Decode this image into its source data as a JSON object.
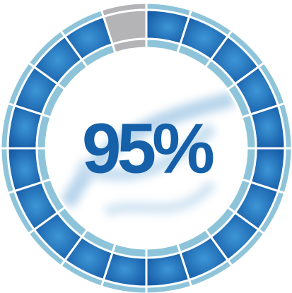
{
  "chart_data": {
    "type": "ring",
    "values": [
      95
    ],
    "value_labels": [
      "95%"
    ],
    "segments": 20,
    "color": "#1a6db5",
    "empty_color": "#b4b4b7",
    "rim_color": "#8ec4da",
    "text_color": "#1560a8"
  }
}
